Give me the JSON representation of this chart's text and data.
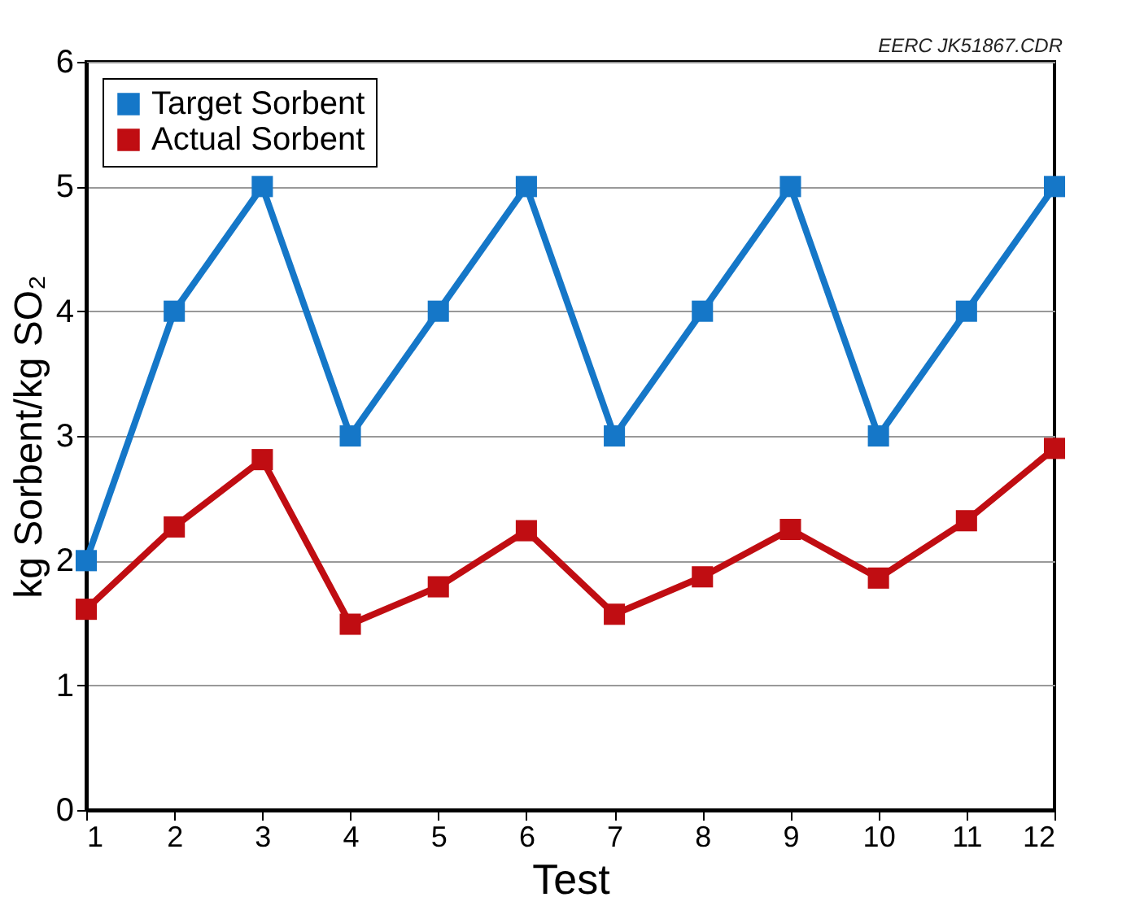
{
  "chart_data": {
    "type": "line",
    "xlabel": "Test",
    "ylabel": "kg Sorbent/kg SO₂",
    "annotations": [
      "EERC JK51867.CDR"
    ],
    "x": [
      1,
      2,
      3,
      4,
      5,
      6,
      7,
      8,
      9,
      10,
      11,
      12
    ],
    "series": [
      {
        "name": "Target Sorbent",
        "color": "#1577c8",
        "values": [
          2,
          4,
          5,
          3,
          4,
          5,
          3,
          4,
          5,
          3,
          4,
          5
        ]
      },
      {
        "name": "Actual Sorbent",
        "color": "#c00d12",
        "values": [
          1.61,
          2.27,
          2.81,
          1.49,
          1.79,
          2.24,
          1.57,
          1.87,
          2.25,
          1.86,
          2.32,
          2.9
        ]
      }
    ],
    "xlim": [
      1,
      12
    ],
    "xticks": [
      1,
      2,
      3,
      4,
      5,
      6,
      7,
      8,
      9,
      10,
      11,
      12
    ],
    "ylim": [
      0,
      6
    ],
    "yticks": [
      0,
      1,
      2,
      3,
      4,
      5,
      6
    ],
    "grid": "y",
    "legend": "top left",
    "marker": "square",
    "line_style": "solid"
  }
}
